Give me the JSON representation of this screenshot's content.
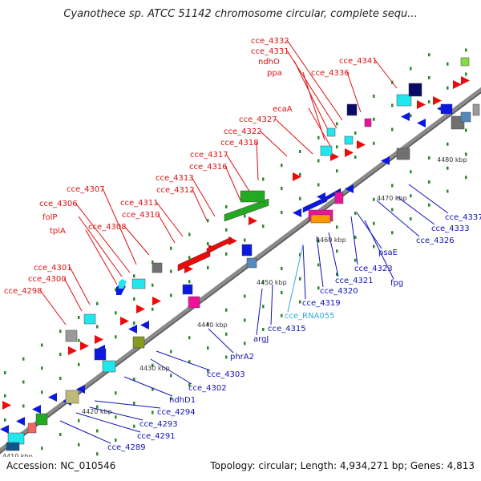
{
  "title": "Cyanothece sp. ATCC 51142 chromosome circular, complete sequ...",
  "footer": {
    "accession": "Accession: NC_010546",
    "summary": "Topology: circular; Length: 4,934,271 bp; Genes: 4,813"
  },
  "colors": {
    "forward_label": "#dd1111",
    "reverse_label": "#1111bb",
    "rna_label": "#33aadd",
    "backbone": "#8a8a8a",
    "tick": "#2a8a2a"
  },
  "kbp_labels": [
    {
      "text": "4410 kbp"
    },
    {
      "text": "4420 kbp"
    },
    {
      "text": "4430 kbp"
    },
    {
      "text": "4440 kbp"
    },
    {
      "text": "4450 kbp"
    },
    {
      "text": "4460 kbp"
    },
    {
      "text": "4470 kbp"
    },
    {
      "text": "4480 kbp"
    }
  ],
  "forward_genes": [
    {
      "name": "cce_4332"
    },
    {
      "name": "cce_4331"
    },
    {
      "name": "ndhO"
    },
    {
      "name": "ppa"
    },
    {
      "name": "cce_4341"
    },
    {
      "name": "cce_4336"
    },
    {
      "name": "ecaA"
    },
    {
      "name": "cce_4327"
    },
    {
      "name": "cce_4322"
    },
    {
      "name": "cce_4318"
    },
    {
      "name": "cce_4317"
    },
    {
      "name": "cce_4316"
    },
    {
      "name": "cce_4313"
    },
    {
      "name": "cce_4312"
    },
    {
      "name": "cce_4307"
    },
    {
      "name": "cce_4311"
    },
    {
      "name": "cce_4306"
    },
    {
      "name": "cce_4310"
    },
    {
      "name": "folP"
    },
    {
      "name": "cce_4308"
    },
    {
      "name": "tpiA"
    },
    {
      "name": "cce_4301"
    },
    {
      "name": "cce_4300"
    },
    {
      "name": "cce_4298"
    }
  ],
  "reverse_genes": [
    {
      "name": "cce_4337"
    },
    {
      "name": "cce_4333"
    },
    {
      "name": "cce_4326"
    },
    {
      "name": "psaE"
    },
    {
      "name": "cce_4323"
    },
    {
      "name": "fpg"
    },
    {
      "name": "cce_4321"
    },
    {
      "name": "cce_4320"
    },
    {
      "name": "cce_4319"
    },
    {
      "name": "cce_RNA055"
    },
    {
      "name": "cce_4315"
    },
    {
      "name": "argJ"
    },
    {
      "name": "phrA2"
    },
    {
      "name": "cce_4303"
    },
    {
      "name": "cce_4302"
    },
    {
      "name": "ndhD1"
    },
    {
      "name": "cce_4294"
    },
    {
      "name": "cce_4293"
    },
    {
      "name": "cce_4291"
    },
    {
      "name": "cce_4289"
    }
  ]
}
